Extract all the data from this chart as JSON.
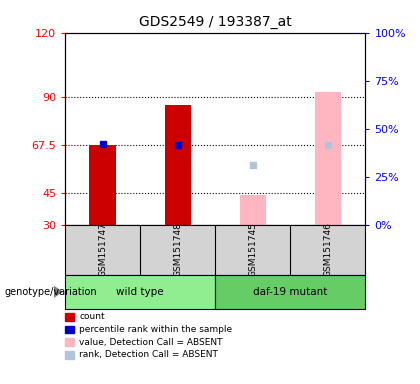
{
  "title": "GDS2549 / 193387_at",
  "samples": [
    "GSM151747",
    "GSM151748",
    "GSM151745",
    "GSM151746"
  ],
  "count_values": [
    67.5,
    86.0,
    null,
    null
  ],
  "percentile_values": [
    68.0,
    67.5,
    null,
    null
  ],
  "absent_value_values": [
    null,
    null,
    44.0,
    92.0
  ],
  "absent_rank_values": [
    null,
    null,
    58.0,
    67.5
  ],
  "ylim_left": [
    30,
    120
  ],
  "yticks_left": [
    30,
    45,
    67.5,
    90,
    120
  ],
  "yticks_right": [
    0,
    25,
    50,
    75,
    100
  ],
  "count_color": "#CC0000",
  "percentile_color": "#0000CC",
  "absent_value_color": "#FFB6C1",
  "absent_rank_color": "#B0C4DE",
  "legend_items": [
    [
      "count",
      "#CC0000"
    ],
    [
      "percentile rank within the sample",
      "#0000CC"
    ],
    [
      "value, Detection Call = ABSENT",
      "#FFB6C1"
    ],
    [
      "rank, Detection Call = ABSENT",
      "#B0C4DE"
    ]
  ],
  "group_label": "genotype/variation",
  "groups_def": [
    {
      "label": "wild type",
      "start": 0,
      "end": 1,
      "color": "#90EE90"
    },
    {
      "label": "daf-19 mutant",
      "start": 2,
      "end": 3,
      "color": "#66CC66"
    }
  ],
  "background_color": "#ffffff",
  "sample_bg_color": "#d3d3d3"
}
